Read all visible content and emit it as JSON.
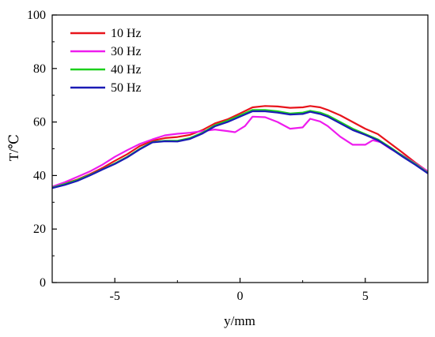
{
  "chart_data": {
    "type": "line",
    "xlabel": "y/mm",
    "ylabel": "T/℃",
    "xlim": [
      -7.5,
      7.5
    ],
    "ylim": [
      0,
      100
    ],
    "xticks": [
      -5,
      0,
      5
    ],
    "yticks": [
      0,
      20,
      40,
      60,
      80,
      100
    ],
    "grid": false,
    "legend_position": "top-left",
    "series": [
      {
        "name": "10 Hz",
        "color": "#e8141b",
        "points": [
          [
            -7.5,
            35.8
          ],
          [
            -7.0,
            37.0
          ],
          [
            -6.5,
            38.5
          ],
          [
            -6.0,
            40.5
          ],
          [
            -5.5,
            42.8
          ],
          [
            -5.0,
            45.5
          ],
          [
            -4.5,
            48.0
          ],
          [
            -4.0,
            51.0
          ],
          [
            -3.5,
            53.0
          ],
          [
            -3.0,
            54.0
          ],
          [
            -2.5,
            54.4
          ],
          [
            -2.0,
            55.2
          ],
          [
            -1.5,
            57.0
          ],
          [
            -1.0,
            59.5
          ],
          [
            -0.5,
            61.0
          ],
          [
            0.0,
            63.2
          ],
          [
            0.5,
            65.5
          ],
          [
            1.0,
            66.0
          ],
          [
            1.5,
            65.8
          ],
          [
            2.0,
            65.3
          ],
          [
            2.5,
            65.5
          ],
          [
            2.8,
            66.0
          ],
          [
            3.2,
            65.5
          ],
          [
            3.5,
            64.5
          ],
          [
            4.0,
            62.5
          ],
          [
            4.5,
            60.0
          ],
          [
            5.0,
            57.5
          ],
          [
            5.5,
            55.5
          ],
          [
            6.0,
            52.0
          ],
          [
            6.5,
            48.5
          ],
          [
            7.0,
            44.8
          ],
          [
            7.5,
            41.5
          ]
        ]
      },
      {
        "name": "30 Hz",
        "color": "#ee1cee",
        "points": [
          [
            -7.5,
            35.8
          ],
          [
            -7.0,
            37.5
          ],
          [
            -6.5,
            39.5
          ],
          [
            -6.0,
            41.5
          ],
          [
            -5.5,
            44.0
          ],
          [
            -5.0,
            47.0
          ],
          [
            -4.5,
            49.5
          ],
          [
            -4.0,
            51.8
          ],
          [
            -3.5,
            53.5
          ],
          [
            -3.0,
            55.0
          ],
          [
            -2.5,
            55.6
          ],
          [
            -2.0,
            56.0
          ],
          [
            -1.5,
            56.6
          ],
          [
            -1.0,
            57.2
          ],
          [
            -0.5,
            56.6
          ],
          [
            -0.2,
            56.2
          ],
          [
            0.2,
            58.5
          ],
          [
            0.5,
            62.0
          ],
          [
            1.0,
            61.8
          ],
          [
            1.5,
            60.0
          ],
          [
            2.0,
            57.5
          ],
          [
            2.5,
            58.0
          ],
          [
            2.8,
            61.2
          ],
          [
            3.2,
            60.2
          ],
          [
            3.5,
            58.5
          ],
          [
            4.0,
            54.5
          ],
          [
            4.5,
            51.5
          ],
          [
            5.0,
            51.5
          ],
          [
            5.3,
            53.2
          ],
          [
            5.6,
            52.5
          ],
          [
            6.0,
            50.0
          ],
          [
            6.5,
            47.5
          ],
          [
            7.0,
            44.5
          ],
          [
            7.5,
            41.5
          ]
        ]
      },
      {
        "name": "40 Hz",
        "color": "#1cd01c",
        "points": [
          [
            -7.5,
            35.5
          ],
          [
            -7.0,
            36.8
          ],
          [
            -6.5,
            38.3
          ],
          [
            -6.0,
            40.2
          ],
          [
            -5.5,
            42.3
          ],
          [
            -5.0,
            44.5
          ],
          [
            -4.5,
            47.0
          ],
          [
            -4.0,
            50.0
          ],
          [
            -3.5,
            52.5
          ],
          [
            -3.0,
            53.0
          ],
          [
            -2.5,
            53.0
          ],
          [
            -2.0,
            54.0
          ],
          [
            -1.5,
            56.0
          ],
          [
            -1.0,
            58.8
          ],
          [
            -0.5,
            60.5
          ],
          [
            0.0,
            62.5
          ],
          [
            0.5,
            64.5
          ],
          [
            1.0,
            64.5
          ],
          [
            1.5,
            64.0
          ],
          [
            2.0,
            63.2
          ],
          [
            2.5,
            63.5
          ],
          [
            2.8,
            64.2
          ],
          [
            3.2,
            63.5
          ],
          [
            3.5,
            62.5
          ],
          [
            4.0,
            60.0
          ],
          [
            4.5,
            57.5
          ],
          [
            5.0,
            55.5
          ],
          [
            5.5,
            53.5
          ],
          [
            6.0,
            50.5
          ],
          [
            6.5,
            47.3
          ],
          [
            7.0,
            44.3
          ],
          [
            7.5,
            41.0
          ]
        ]
      },
      {
        "name": "50 Hz",
        "color": "#1b1bb5",
        "points": [
          [
            -7.5,
            35.3
          ],
          [
            -7.0,
            36.5
          ],
          [
            -6.5,
            38.0
          ],
          [
            -6.0,
            40.0
          ],
          [
            -5.5,
            42.2
          ],
          [
            -5.0,
            44.3
          ],
          [
            -4.5,
            46.8
          ],
          [
            -4.0,
            49.8
          ],
          [
            -3.5,
            52.4
          ],
          [
            -3.0,
            52.8
          ],
          [
            -2.5,
            52.7
          ],
          [
            -2.0,
            53.7
          ],
          [
            -1.5,
            55.7
          ],
          [
            -1.0,
            58.4
          ],
          [
            -0.5,
            60.0
          ],
          [
            0.0,
            62.0
          ],
          [
            0.5,
            64.0
          ],
          [
            1.0,
            64.0
          ],
          [
            1.5,
            63.5
          ],
          [
            2.0,
            62.8
          ],
          [
            2.5,
            63.0
          ],
          [
            2.8,
            63.8
          ],
          [
            3.2,
            63.0
          ],
          [
            3.5,
            62.0
          ],
          [
            4.0,
            59.5
          ],
          [
            4.5,
            57.0
          ],
          [
            5.0,
            55.2
          ],
          [
            5.5,
            53.2
          ],
          [
            6.0,
            50.2
          ],
          [
            6.5,
            47.0
          ],
          [
            7.0,
            44.0
          ],
          [
            7.5,
            40.8
          ]
        ]
      }
    ]
  }
}
